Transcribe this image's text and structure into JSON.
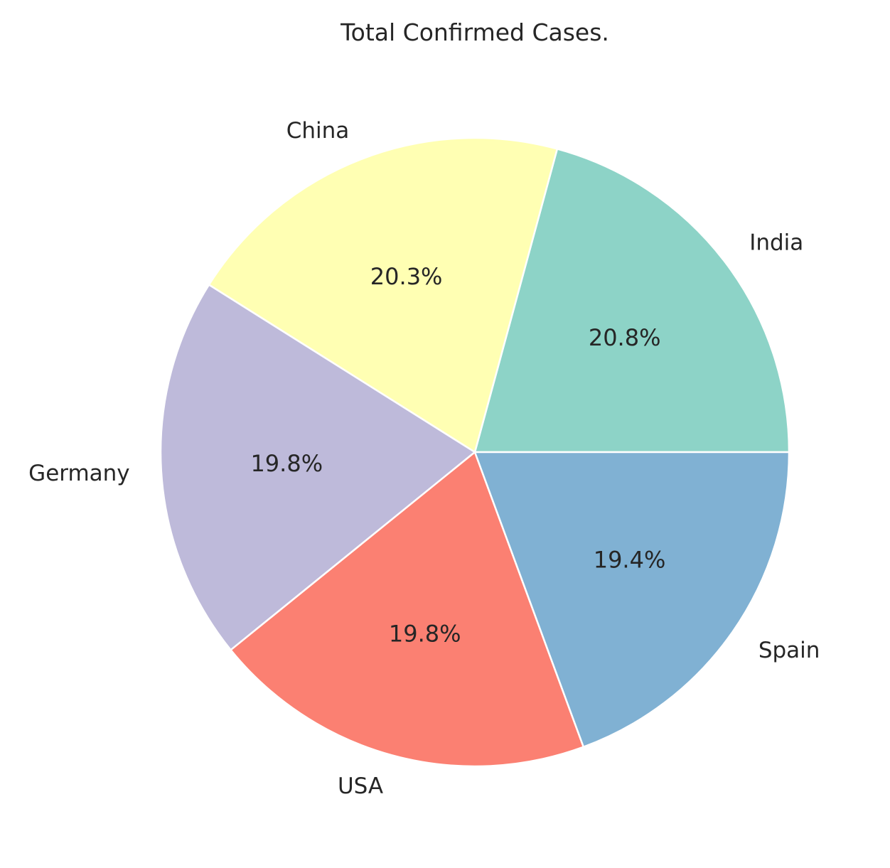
{
  "chart_data": {
    "type": "pie",
    "title": "Total Confirmed Cases.",
    "categories": [
      "India",
      "China",
      "Germany",
      "USA",
      "Spain"
    ],
    "values": [
      20.8,
      20.3,
      19.8,
      19.8,
      19.4
    ],
    "value_labels": [
      "20.8%",
      "20.3%",
      "19.8%",
      "19.8%",
      "19.4%"
    ],
    "colors": [
      "#8dd3c7",
      "#ffffb3",
      "#bebada",
      "#fb8072",
      "#80b1d3"
    ],
    "start_angle_deg": 0,
    "direction": "counterclockwise",
    "edge_color": "#ffffff",
    "legend": "none"
  }
}
